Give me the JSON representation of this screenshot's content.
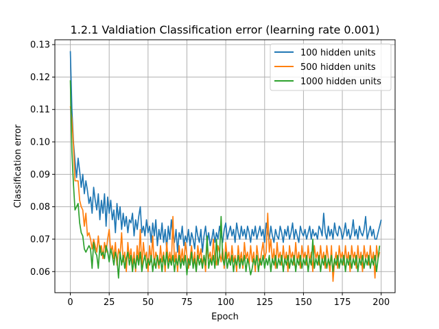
{
  "chart_data": {
    "type": "line",
    "title": "1.2.1 Valdiation Classification error (learning rate 0.001)",
    "xlabel": "Epoch",
    "ylabel": "Classification error",
    "xlim": [
      -9.95,
      208.95
    ],
    "ylim": [
      0.0535,
      0.1315
    ],
    "xticks": [
      0,
      25,
      50,
      75,
      100,
      125,
      150,
      175,
      200
    ],
    "yticks": [
      0.06,
      0.07,
      0.08,
      0.09,
      0.1,
      0.11,
      0.12,
      0.13
    ],
    "ytick_labels": [
      "0.06",
      "0.07",
      "0.08",
      "0.09",
      "0.10",
      "0.11",
      "0.12",
      "0.13"
    ],
    "grid": true,
    "legend_position": "top-right",
    "series": [
      {
        "name": "100 hidden units",
        "color": "#1f77b4",
        "values": [
          0.128,
          0.11,
          0.1,
          0.094,
          0.089,
          0.095,
          0.091,
          0.086,
          0.09,
          0.084,
          0.088,
          0.085,
          0.081,
          0.083,
          0.078,
          0.086,
          0.082,
          0.079,
          0.084,
          0.076,
          0.082,
          0.078,
          0.084,
          0.074,
          0.083,
          0.078,
          0.082,
          0.076,
          0.079,
          0.072,
          0.081,
          0.076,
          0.08,
          0.073,
          0.078,
          0.074,
          0.077,
          0.072,
          0.076,
          0.075,
          0.078,
          0.071,
          0.076,
          0.073,
          0.077,
          0.08,
          0.072,
          0.074,
          0.071,
          0.076,
          0.072,
          0.074,
          0.069,
          0.075,
          0.071,
          0.076,
          0.068,
          0.073,
          0.07,
          0.075,
          0.069,
          0.073,
          0.067,
          0.074,
          0.07,
          0.076,
          0.071,
          0.069,
          0.073,
          0.066,
          0.072,
          0.07,
          0.074,
          0.068,
          0.071,
          0.069,
          0.073,
          0.068,
          0.072,
          0.07,
          0.067,
          0.074,
          0.071,
          0.069,
          0.073,
          0.066,
          0.071,
          0.074,
          0.069,
          0.072,
          0.068,
          0.07,
          0.073,
          0.069,
          0.072,
          0.07,
          0.074,
          0.071,
          0.069,
          0.073,
          0.075,
          0.07,
          0.072,
          0.074,
          0.071,
          0.073,
          0.069,
          0.075,
          0.072,
          0.07,
          0.074,
          0.071,
          0.073,
          0.07,
          0.074,
          0.072,
          0.069,
          0.073,
          0.071,
          0.074,
          0.07,
          0.072,
          0.074,
          0.071,
          0.073,
          0.069,
          0.075,
          0.072,
          0.07,
          0.074,
          0.071,
          0.069,
          0.073,
          0.071,
          0.07,
          0.074,
          0.072,
          0.069,
          0.073,
          0.071,
          0.074,
          0.07,
          0.072,
          0.075,
          0.07,
          0.073,
          0.071,
          0.069,
          0.074,
          0.072,
          0.071,
          0.073,
          0.07,
          0.072,
          0.074,
          0.07,
          0.073,
          0.071,
          0.072,
          0.07,
          0.074,
          0.073,
          0.071,
          0.078,
          0.072,
          0.07,
          0.074,
          0.071,
          0.073,
          0.07,
          0.075,
          0.072,
          0.071,
          0.074,
          0.073,
          0.07,
          0.072,
          0.075,
          0.071,
          0.073,
          0.07,
          0.072,
          0.076,
          0.071,
          0.073,
          0.07,
          0.074,
          0.072,
          0.071,
          0.073,
          0.077,
          0.07,
          0.072,
          0.074,
          0.071,
          0.073,
          0.07,
          0.07,
          0.072,
          0.074,
          0.076
        ]
      },
      {
        "name": "500 hidden units",
        "color": "#ff7f0e",
        "values": [
          0.111,
          0.107,
          0.099,
          0.088,
          0.088,
          0.088,
          0.082,
          0.08,
          0.079,
          0.074,
          0.078,
          0.071,
          0.072,
          0.07,
          0.067,
          0.07,
          0.068,
          0.066,
          0.071,
          0.066,
          0.068,
          0.064,
          0.069,
          0.066,
          0.07,
          0.073,
          0.066,
          0.068,
          0.064,
          0.069,
          0.062,
          0.067,
          0.065,
          0.072,
          0.063,
          0.066,
          0.06,
          0.069,
          0.064,
          0.067,
          0.062,
          0.066,
          0.06,
          0.068,
          0.063,
          0.073,
          0.061,
          0.069,
          0.064,
          0.066,
          0.06,
          0.068,
          0.063,
          0.071,
          0.062,
          0.066,
          0.064,
          0.061,
          0.068,
          0.063,
          0.066,
          0.06,
          0.069,
          0.063,
          0.066,
          0.062,
          0.077,
          0.063,
          0.066,
          0.06,
          0.068,
          0.063,
          0.067,
          0.062,
          0.069,
          0.065,
          0.061,
          0.064,
          0.068,
          0.062,
          0.066,
          0.06,
          0.068,
          0.064,
          0.067,
          0.062,
          0.065,
          0.06,
          0.069,
          0.064,
          0.066,
          0.062,
          0.07,
          0.064,
          0.062,
          0.068,
          0.066,
          0.063,
          0.067,
          0.061,
          0.069,
          0.064,
          0.066,
          0.062,
          0.068,
          0.063,
          0.065,
          0.06,
          0.068,
          0.063,
          0.066,
          0.061,
          0.069,
          0.064,
          0.066,
          0.062,
          0.068,
          0.063,
          0.066,
          0.06,
          0.068,
          0.064,
          0.062,
          0.066,
          0.069,
          0.064,
          0.066,
          0.078,
          0.066,
          0.07,
          0.063,
          0.067,
          0.061,
          0.069,
          0.064,
          0.066,
          0.062,
          0.068,
          0.063,
          0.066,
          0.06,
          0.068,
          0.064,
          0.066,
          0.062,
          0.069,
          0.063,
          0.066,
          0.061,
          0.068,
          0.064,
          0.066,
          0.062,
          0.068,
          0.063,
          0.066,
          0.06,
          0.068,
          0.064,
          0.066,
          0.062,
          0.068,
          0.063,
          0.066,
          0.061,
          0.068,
          0.064,
          0.06,
          0.068,
          0.057,
          0.063,
          0.066,
          0.061,
          0.068,
          0.064,
          0.066,
          0.062,
          0.068,
          0.063,
          0.066,
          0.06,
          0.068,
          0.064,
          0.066,
          0.061,
          0.068,
          0.063,
          0.066,
          0.06,
          0.068,
          0.064,
          0.066,
          0.062,
          0.068,
          0.063,
          0.066,
          0.058,
          0.068,
          0.064,
          0.066
        ]
      },
      {
        "name": "1000 hidden units",
        "color": "#2ca02c",
        "values": [
          0.119,
          0.097,
          0.087,
          0.079,
          0.08,
          0.081,
          0.075,
          0.072,
          0.071,
          0.067,
          0.066,
          0.067,
          0.068,
          0.067,
          0.061,
          0.069,
          0.066,
          0.065,
          0.061,
          0.068,
          0.065,
          0.066,
          0.064,
          0.068,
          0.066,
          0.063,
          0.067,
          0.065,
          0.062,
          0.066,
          0.064,
          0.058,
          0.066,
          0.062,
          0.065,
          0.061,
          0.064,
          0.066,
          0.062,
          0.065,
          0.06,
          0.064,
          0.061,
          0.065,
          0.062,
          0.066,
          0.06,
          0.063,
          0.065,
          0.061,
          0.064,
          0.062,
          0.065,
          0.06,
          0.064,
          0.061,
          0.065,
          0.062,
          0.064,
          0.06,
          0.065,
          0.062,
          0.066,
          0.061,
          0.064,
          0.062,
          0.065,
          0.06,
          0.064,
          0.062,
          0.065,
          0.061,
          0.064,
          0.062,
          0.065,
          0.059,
          0.064,
          0.062,
          0.066,
          0.061,
          0.064,
          0.06,
          0.065,
          0.062,
          0.064,
          0.061,
          0.065,
          0.062,
          0.071,
          0.061,
          0.064,
          0.062,
          0.065,
          0.061,
          0.07,
          0.062,
          0.065,
          0.077,
          0.064,
          0.062,
          0.066,
          0.061,
          0.064,
          0.062,
          0.065,
          0.06,
          0.064,
          0.062,
          0.065,
          0.061,
          0.064,
          0.062,
          0.065,
          0.06,
          0.064,
          0.062,
          0.059,
          0.061,
          0.064,
          0.062,
          0.065,
          0.06,
          0.064,
          0.062,
          0.065,
          0.061,
          0.064,
          0.062,
          0.065,
          0.06,
          0.064,
          0.062,
          0.065,
          0.061,
          0.064,
          0.062,
          0.065,
          0.06,
          0.064,
          0.062,
          0.065,
          0.061,
          0.064,
          0.062,
          0.065,
          0.06,
          0.064,
          0.062,
          0.065,
          0.061,
          0.064,
          0.062,
          0.065,
          0.06,
          0.064,
          0.062,
          0.07,
          0.061,
          0.064,
          0.062,
          0.065,
          0.06,
          0.064,
          0.062,
          0.065,
          0.061,
          0.064,
          0.062,
          0.065,
          0.06,
          0.064,
          0.062,
          0.065,
          0.061,
          0.064,
          0.062,
          0.065,
          0.06,
          0.064,
          0.062,
          0.065,
          0.061,
          0.064,
          0.062,
          0.065,
          0.06,
          0.064,
          0.062,
          0.065,
          0.061,
          0.064,
          0.062,
          0.065,
          0.061,
          0.064,
          0.062,
          0.065,
          0.06,
          0.064,
          0.068
        ]
      }
    ]
  }
}
